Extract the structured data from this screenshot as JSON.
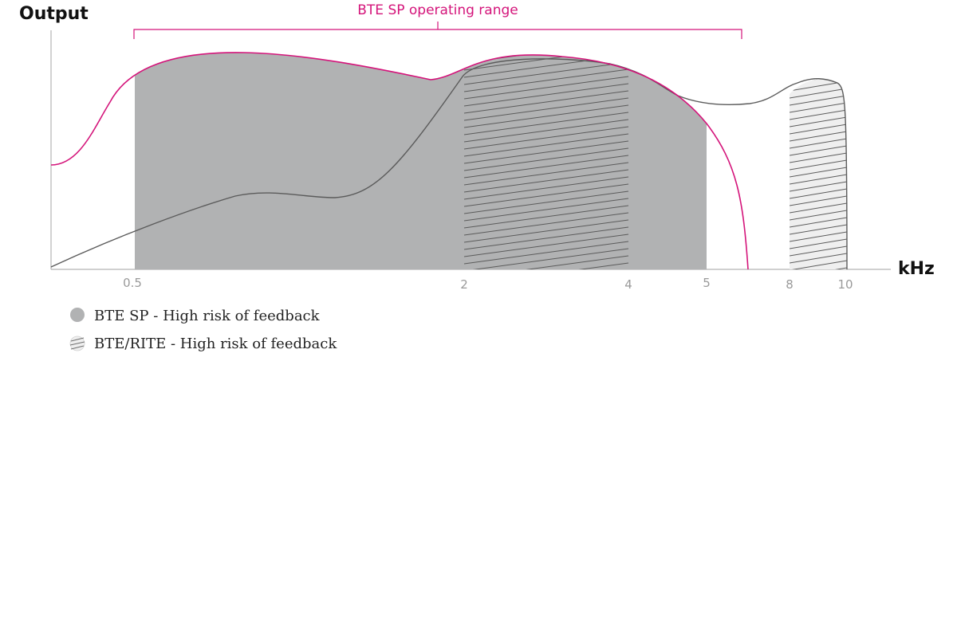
{
  "chart_data": {
    "type": "area",
    "ylabel": "Output",
    "xlabel": "kHz",
    "x_scale": "categorical",
    "x_ticks": [
      "0.5",
      "2",
      "4",
      "5",
      "8",
      "10"
    ],
    "y_ticks": [],
    "grid": false,
    "bracket": {
      "label": "BTE SP operating range",
      "from": "0.5",
      "to": "beyond 5"
    },
    "regions": [
      {
        "name": "BTE SP - High risk of feedback",
        "from": "0.5",
        "to": "5",
        "style": "solid"
      },
      {
        "name": "BTE/RITE - High risk of feedback",
        "from": "2",
        "to": "4",
        "style": "hatched"
      },
      {
        "name": "BTE/RITE - High risk of feedback",
        "from": "8",
        "to": "10",
        "style": "hatched"
      }
    ],
    "series": [
      {
        "name": "BTE SP operating range",
        "style": "magenta curve"
      },
      {
        "style": "gray curve"
      }
    ],
    "legend": [
      {
        "label": "BTE SP - High risk of feedback",
        "symbol": "solid"
      },
      {
        "label": "BTE/RITE - High risk of feedback",
        "symbol": "hatched"
      }
    ],
    "legend_position": "bottom-left"
  },
  "colors": {
    "accent": "#d4147a",
    "fill_gray": "#b1b2b3",
    "fill_light": "#efefef",
    "curve_gray": "#5b5b5b",
    "axis": "#b4b4b4",
    "tick_text": "#9a9a9a",
    "text": "#111111"
  }
}
